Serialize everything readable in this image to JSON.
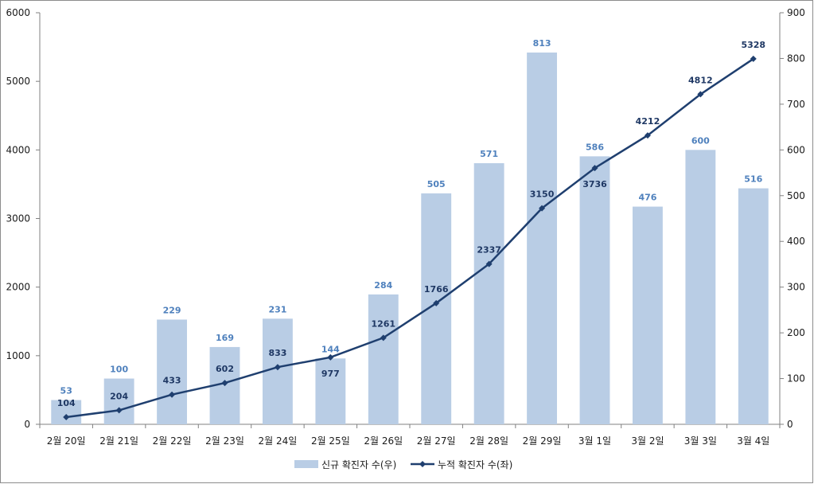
{
  "chart_data": {
    "type": "bar+line",
    "categories": [
      "2월 20일",
      "2월 21일",
      "2월 22일",
      "2월 23일",
      "2월 24일",
      "2월 25일",
      "2월 26일",
      "2월 27일",
      "2월 28일",
      "2월 29일",
      "3월 1일",
      "3월 2일",
      "3월 3일",
      "3월 4일"
    ],
    "series": [
      {
        "name": "신규 확진자 수(우)",
        "type": "bar",
        "axis": "right",
        "color": "#b9cde5",
        "label_color": "#4f81bd",
        "values": [
          53,
          100,
          229,
          169,
          231,
          144,
          284,
          505,
          571,
          813,
          586,
          476,
          600,
          516
        ]
      },
      {
        "name": "누적 확진자 수(좌)",
        "type": "line",
        "axis": "left",
        "color": "#1f3f6f",
        "label_color": "#1f3864",
        "values": [
          104,
          204,
          433,
          602,
          833,
          977,
          1261,
          1766,
          2337,
          3150,
          3736,
          4212,
          4812,
          5328
        ]
      }
    ],
    "y_left": {
      "min": 0,
      "max": 6000,
      "ticks": [
        0,
        1000,
        2000,
        3000,
        4000,
        5000,
        6000
      ]
    },
    "y_right": {
      "min": 0,
      "max": 900,
      "ticks": [
        0,
        100,
        200,
        300,
        400,
        500,
        600,
        700,
        800,
        900
      ]
    },
    "grid": false,
    "legend_position": "bottom"
  }
}
